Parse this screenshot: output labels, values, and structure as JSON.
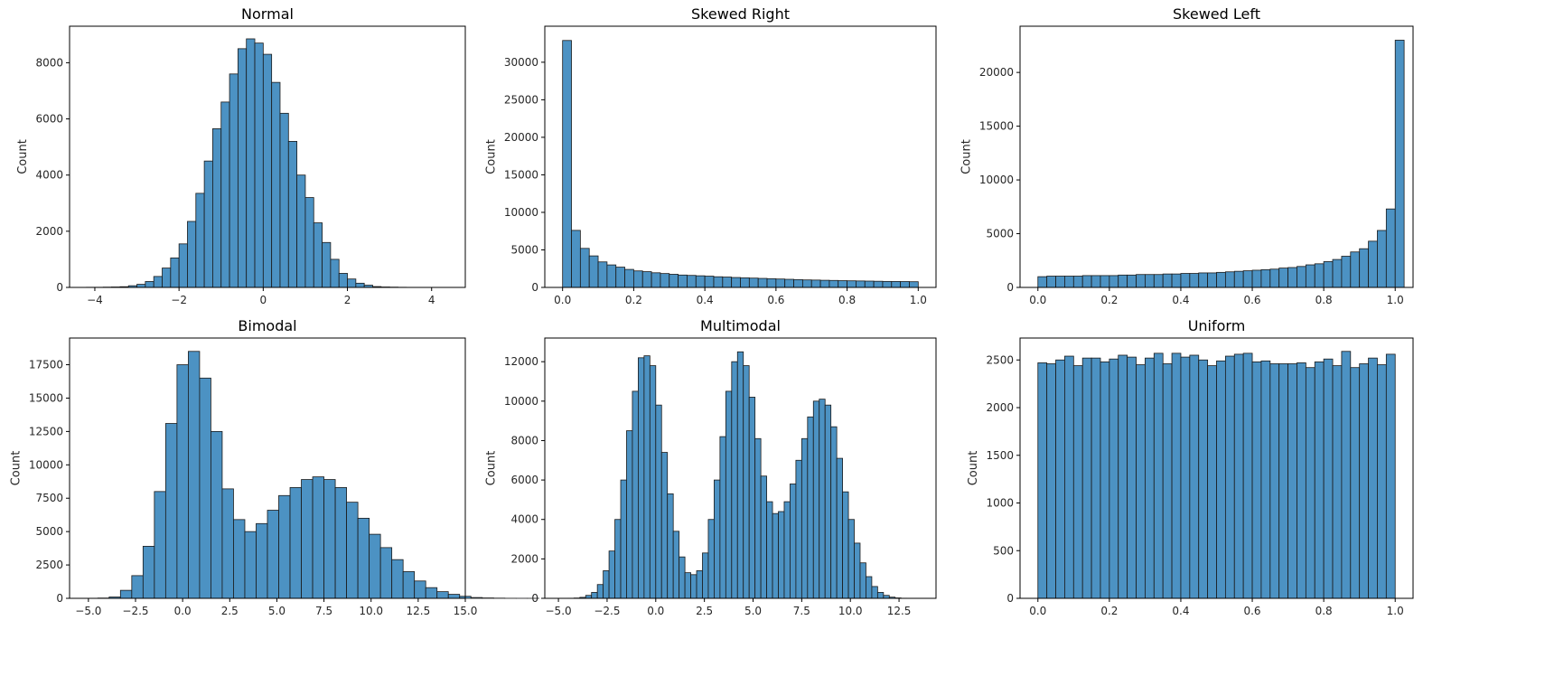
{
  "chart_data": [
    {
      "type": "bar",
      "title": "Normal",
      "xlabel": "",
      "ylabel": "Count",
      "xlim": [
        -4.6,
        4.8
      ],
      "ylim": [
        0,
        9300
      ],
      "xticks": [
        -4,
        -2,
        0,
        2,
        4
      ],
      "xtick_labels": [
        "−4",
        "−2",
        "0",
        "2",
        "4"
      ],
      "yticks": [
        0,
        2000,
        4000,
        6000,
        8000
      ],
      "ytick_labels": [
        "0",
        "2000",
        "4000",
        "6000",
        "8000"
      ],
      "bin_start": -4.2,
      "bin_width": 0.2,
      "values": [
        5,
        5,
        10,
        15,
        25,
        60,
        110,
        210,
        390,
        690,
        1050,
        1550,
        2350,
        3350,
        4500,
        5650,
        6600,
        7600,
        8500,
        8850,
        8700,
        8300,
        7300,
        6200,
        5200,
        4000,
        3200,
        2300,
        1600,
        1000,
        500,
        300,
        150,
        80,
        30,
        15,
        10,
        5
      ]
    },
    {
      "type": "bar",
      "title": "Skewed Right",
      "xlabel": "",
      "ylabel": "Count",
      "xlim": [
        -0.05,
        1.05
      ],
      "ylim": [
        0,
        34800
      ],
      "xticks": [
        0,
        0.2,
        0.4,
        0.6,
        0.8,
        1.0
      ],
      "xtick_labels": [
        "0.0",
        "0.2",
        "0.4",
        "0.6",
        "0.8",
        "1.0"
      ],
      "yticks": [
        0,
        5000,
        10000,
        15000,
        20000,
        25000,
        30000
      ],
      "ytick_labels": [
        "0",
        "5000",
        "10000",
        "15000",
        "20000",
        "25000",
        "30000"
      ],
      "bin_start": 0,
      "bin_width": 0.025,
      "values": [
        32900,
        7600,
        5200,
        4200,
        3400,
        3000,
        2700,
        2400,
        2200,
        2100,
        1950,
        1850,
        1750,
        1650,
        1600,
        1550,
        1500,
        1420,
        1380,
        1320,
        1280,
        1240,
        1200,
        1160,
        1120,
        1080,
        1040,
        1000,
        980,
        950,
        930,
        900,
        880,
        860,
        840,
        820,
        800,
        790,
        780,
        760
      ]
    },
    {
      "type": "bar",
      "title": "Skewed Left",
      "xlabel": "",
      "ylabel": "Count",
      "xlim": [
        -0.05,
        1.05
      ],
      "ylim": [
        0,
        24300
      ],
      "xticks": [
        0,
        0.2,
        0.4,
        0.6,
        0.8,
        1.0
      ],
      "xtick_labels": [
        "0.0",
        "0.2",
        "0.4",
        "0.6",
        "0.8",
        "1.0"
      ],
      "yticks": [
        0,
        5000,
        10000,
        15000,
        20000
      ],
      "ytick_labels": [
        "0",
        "5000",
        "10000",
        "15000",
        "20000"
      ],
      "bin_start": 0,
      "bin_width": 0.025,
      "values": [
        1000,
        1050,
        1050,
        1050,
        1050,
        1100,
        1100,
        1100,
        1100,
        1150,
        1150,
        1200,
        1200,
        1200,
        1250,
        1250,
        1300,
        1300,
        1350,
        1350,
        1400,
        1450,
        1500,
        1550,
        1600,
        1650,
        1700,
        1800,
        1850,
        1950,
        2100,
        2200,
        2400,
        2600,
        2900,
        3300,
        3600,
        4300,
        5300,
        7300,
        23000
      ]
    },
    {
      "type": "bar",
      "title": "Bimodal",
      "xlabel": "",
      "ylabel": "Count",
      "xlim": [
        -6.0,
        15.0
      ],
      "ylim": [
        0,
        19500
      ],
      "xticks": [
        -5,
        -2.5,
        0,
        2.5,
        5,
        7.5,
        10,
        12.5,
        15
      ],
      "xtick_labels": [
        "−5.0",
        "−2.5",
        "0.0",
        "2.5",
        "5.0",
        "7.5",
        "10.0",
        "12.5",
        "15.0"
      ],
      "yticks": [
        0,
        2500,
        5000,
        7500,
        10000,
        12500,
        15000,
        17500
      ],
      "ytick_labels": [
        "0",
        "2500",
        "5000",
        "7500",
        "10000",
        "12500",
        "15000",
        "17500"
      ],
      "bin_start": -4.5,
      "bin_width": 0.6,
      "values": [
        20,
        100,
        600,
        1700,
        3900,
        8000,
        13100,
        17500,
        18500,
        16500,
        12500,
        8200,
        5900,
        5000,
        5600,
        6600,
        7700,
        8300,
        8900,
        9100,
        8900,
        8300,
        7200,
        6000,
        4800,
        3800,
        2900,
        2000,
        1300,
        800,
        500,
        300,
        150,
        60,
        30,
        15,
        5,
        3,
        2
      ]
    },
    {
      "type": "bar",
      "title": "Multimodal",
      "xlabel": "",
      "ylabel": "Count",
      "xlim": [
        -5.7,
        14.4
      ],
      "ylim": [
        0,
        13200
      ],
      "xticks": [
        -5,
        -2.5,
        0,
        2.5,
        5,
        7.5,
        10,
        12.5
      ],
      "xtick_labels": [
        "−5.0",
        "−2.5",
        "0.0",
        "2.5",
        "5.0",
        "7.5",
        "10.0",
        "12.5"
      ],
      "yticks": [
        0,
        2000,
        4000,
        6000,
        8000,
        10000,
        12000
      ],
      "ytick_labels": [
        "0",
        "2000",
        "4000",
        "6000",
        "8000",
        "10000",
        "12000"
      ],
      "bin_start": -4.5,
      "bin_width": 0.3,
      "values": [
        5,
        15,
        50,
        150,
        300,
        700,
        1400,
        2400,
        4000,
        6000,
        8500,
        10500,
        12200,
        12300,
        11800,
        9800,
        7400,
        5300,
        3400,
        2100,
        1300,
        1200,
        1400,
        2300,
        4000,
        6000,
        8200,
        10500,
        12000,
        12500,
        11800,
        10200,
        8100,
        6200,
        4900,
        4300,
        4400,
        4900,
        5800,
        7000,
        8100,
        9200,
        10000,
        10100,
        9800,
        8700,
        7100,
        5400,
        4000,
        2800,
        1800,
        1100,
        600,
        300,
        150,
        60,
        20,
        5,
        2
      ]
    },
    {
      "type": "bar",
      "title": "Uniform",
      "xlabel": "",
      "ylabel": "Count",
      "xlim": [
        -0.05,
        1.05
      ],
      "ylim": [
        0,
        2730
      ],
      "xticks": [
        0,
        0.2,
        0.4,
        0.6,
        0.8,
        1.0
      ],
      "xtick_labels": [
        "0.0",
        "0.2",
        "0.4",
        "0.6",
        "0.8",
        "1.0"
      ],
      "yticks": [
        0,
        500,
        1000,
        1500,
        2000,
        2500
      ],
      "ytick_labels": [
        "0",
        "500",
        "1000",
        "1500",
        "2000",
        "2500"
      ],
      "bin_start": 0,
      "bin_width": 0.025,
      "values": [
        2470,
        2460,
        2500,
        2540,
        2440,
        2520,
        2520,
        2480,
        2510,
        2550,
        2530,
        2450,
        2520,
        2570,
        2460,
        2570,
        2530,
        2550,
        2500,
        2440,
        2490,
        2540,
        2560,
        2570,
        2480,
        2490,
        2460,
        2460,
        2460,
        2470,
        2420,
        2480,
        2510,
        2440,
        2590,
        2420,
        2460,
        2520,
        2450,
        2560
      ]
    }
  ],
  "colors": {
    "bar_fill": "#4c92c3",
    "bar_edge": "#1a1a1a",
    "axis": "#000000",
    "background": "#ffffff"
  }
}
